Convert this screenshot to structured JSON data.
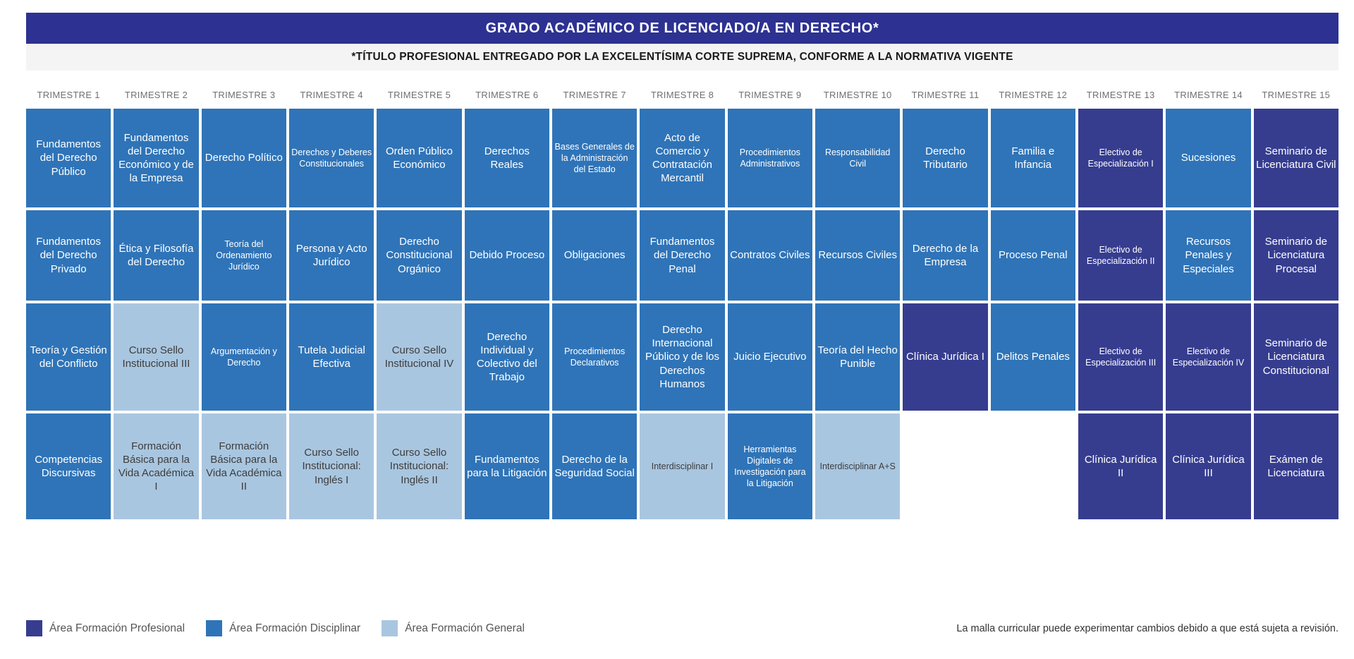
{
  "header": {
    "title": "GRADO ACADÉMICO DE LICENCIADO/A EN DERECHO*",
    "subtitle": "*TÍTULO PROFESIONAL ENTREGADO POR LA EXCELENTÍSIMA CORTE SUPREMA, CONFORME A LA NORMATIVA VIGENTE"
  },
  "colors": {
    "title_bar": "#2d3192",
    "profesional": "#363d8f",
    "disciplinar": "#2f74b8",
    "general": "#a9c6e0"
  },
  "trimesters": [
    "TRIMESTRE 1",
    "TRIMESTRE 2",
    "TRIMESTRE 3",
    "TRIMESTRE 4",
    "TRIMESTRE 5",
    "TRIMESTRE 6",
    "TRIMESTRE 7",
    "TRIMESTRE 8",
    "TRIMESTRE 9",
    "TRIMESTRE 10",
    "TRIMESTRE 11",
    "TRIMESTRE 12",
    "TRIMESTRE 13",
    "TRIMESTRE 14",
    "TRIMESTRE 15"
  ],
  "grid": {
    "rows": [
      [
        {
          "label": "Fundamentos del Derecho Público",
          "area": "disciplinar"
        },
        {
          "label": "Fundamentos del Derecho Económico y de la Empresa",
          "area": "disciplinar"
        },
        {
          "label": "Derecho Político",
          "area": "disciplinar"
        },
        {
          "label": "Derechos y Deberes Constitucionales",
          "area": "disciplinar",
          "small": true
        },
        {
          "label": "Orden Público Económico",
          "area": "disciplinar"
        },
        {
          "label": "Derechos Reales",
          "area": "disciplinar"
        },
        {
          "label": "Bases Generales de la Administración del Estado",
          "area": "disciplinar",
          "small": true
        },
        {
          "label": "Acto de Comercio y Contratación Mercantil",
          "area": "disciplinar"
        },
        {
          "label": "Procedimientos Administrativos",
          "area": "disciplinar",
          "small": true
        },
        {
          "label": "Responsabilidad Civil",
          "area": "disciplinar",
          "small": true
        },
        {
          "label": "Derecho Tributario",
          "area": "disciplinar"
        },
        {
          "label": "Familia e Infancia",
          "area": "disciplinar"
        },
        {
          "label": "Electivo de Especialización I",
          "area": "profesional",
          "small": true
        },
        {
          "label": "Sucesiones",
          "area": "disciplinar"
        },
        {
          "label": "Seminario de Licenciatura Civil",
          "area": "profesional"
        }
      ],
      [
        {
          "label": "Fundamentos del Derecho Privado",
          "area": "disciplinar"
        },
        {
          "label": "Ética y Filosofía del Derecho",
          "area": "disciplinar"
        },
        {
          "label": "Teoría del Ordenamiento Jurídico",
          "area": "disciplinar",
          "small": true
        },
        {
          "label": "Persona y Acto Jurídico",
          "area": "disciplinar"
        },
        {
          "label": "Derecho Constitucional Orgánico",
          "area": "disciplinar"
        },
        {
          "label": "Debido Proceso",
          "area": "disciplinar"
        },
        {
          "label": "Obligaciones",
          "area": "disciplinar"
        },
        {
          "label": "Fundamentos del Derecho Penal",
          "area": "disciplinar"
        },
        {
          "label": "Contratos Civiles",
          "area": "disciplinar"
        },
        {
          "label": "Recursos Civiles",
          "area": "disciplinar"
        },
        {
          "label": "Derecho de la Empresa",
          "area": "disciplinar"
        },
        {
          "label": "Proceso Penal",
          "area": "disciplinar"
        },
        {
          "label": "Electivo de Especialización II",
          "area": "profesional",
          "small": true
        },
        {
          "label": "Recursos Penales y Especiales",
          "area": "disciplinar"
        },
        {
          "label": "Seminario de Licenciatura Procesal",
          "area": "profesional"
        }
      ],
      [
        {
          "label": "Teoría y Gestión del Conflicto",
          "area": "disciplinar"
        },
        {
          "label": "Curso Sello Institucional III",
          "area": "general"
        },
        {
          "label": "Argumentación y Derecho",
          "area": "disciplinar",
          "small": true
        },
        {
          "label": "Tutela Judicial Efectiva",
          "area": "disciplinar"
        },
        {
          "label": "Curso Sello Institucional IV",
          "area": "general"
        },
        {
          "label": "Derecho Individual y Colectivo del Trabajo",
          "area": "disciplinar"
        },
        {
          "label": "Procedimientos Declarativos",
          "area": "disciplinar",
          "small": true
        },
        {
          "label": "Derecho Internacional Público y de los Derechos Humanos",
          "area": "disciplinar"
        },
        {
          "label": "Juicio Ejecutivo",
          "area": "disciplinar"
        },
        {
          "label": "Teoría del Hecho Punible",
          "area": "disciplinar"
        },
        {
          "label": "Clínica Jurídica I",
          "area": "profesional"
        },
        {
          "label": "Delitos Penales",
          "area": "disciplinar"
        },
        {
          "label": "Electivo de Especialización III",
          "area": "profesional",
          "small": true
        },
        {
          "label": "Electivo de Especialización IV",
          "area": "profesional",
          "small": true
        },
        {
          "label": "Seminario de Licenciatura Constitucional",
          "area": "profesional"
        }
      ],
      [
        {
          "label": "Competencias Discursivas",
          "area": "disciplinar"
        },
        {
          "label": "Formación Básica para la Vida Académica I",
          "area": "general"
        },
        {
          "label": "Formación Básica para la Vida Académica II",
          "area": "general"
        },
        {
          "label": "Curso Sello Institucional: Inglés I",
          "area": "general"
        },
        {
          "label": "Curso Sello Institucional: Inglés II",
          "area": "general"
        },
        {
          "label": "Fundamentos para la Litigación",
          "area": "disciplinar"
        },
        {
          "label": "Derecho de la Seguridad Social",
          "area": "disciplinar"
        },
        {
          "label": "Interdisciplinar I",
          "area": "general",
          "small": true
        },
        {
          "label": "Herramientas Digitales de Investigación para la Litigación",
          "area": "disciplinar",
          "small": true
        },
        {
          "label": "Interdisciplinar A+S",
          "area": "general",
          "small": true
        },
        null,
        null,
        {
          "label": "Clínica Jurídica II",
          "area": "profesional"
        },
        {
          "label": "Clínica Jurídica III",
          "area": "profesional"
        },
        {
          "label": "Exámen de Licenciatura",
          "area": "profesional"
        }
      ]
    ]
  },
  "legend": [
    {
      "label": "Área Formación Profesional",
      "color": "#363d8f"
    },
    {
      "label": "Área Formación Disciplinar",
      "color": "#2f74b8"
    },
    {
      "label": "Área Formación General",
      "color": "#a9c6e0"
    }
  ],
  "footer_note": "La malla curricular puede experimentar cambios debido a que está sujeta a revisión."
}
